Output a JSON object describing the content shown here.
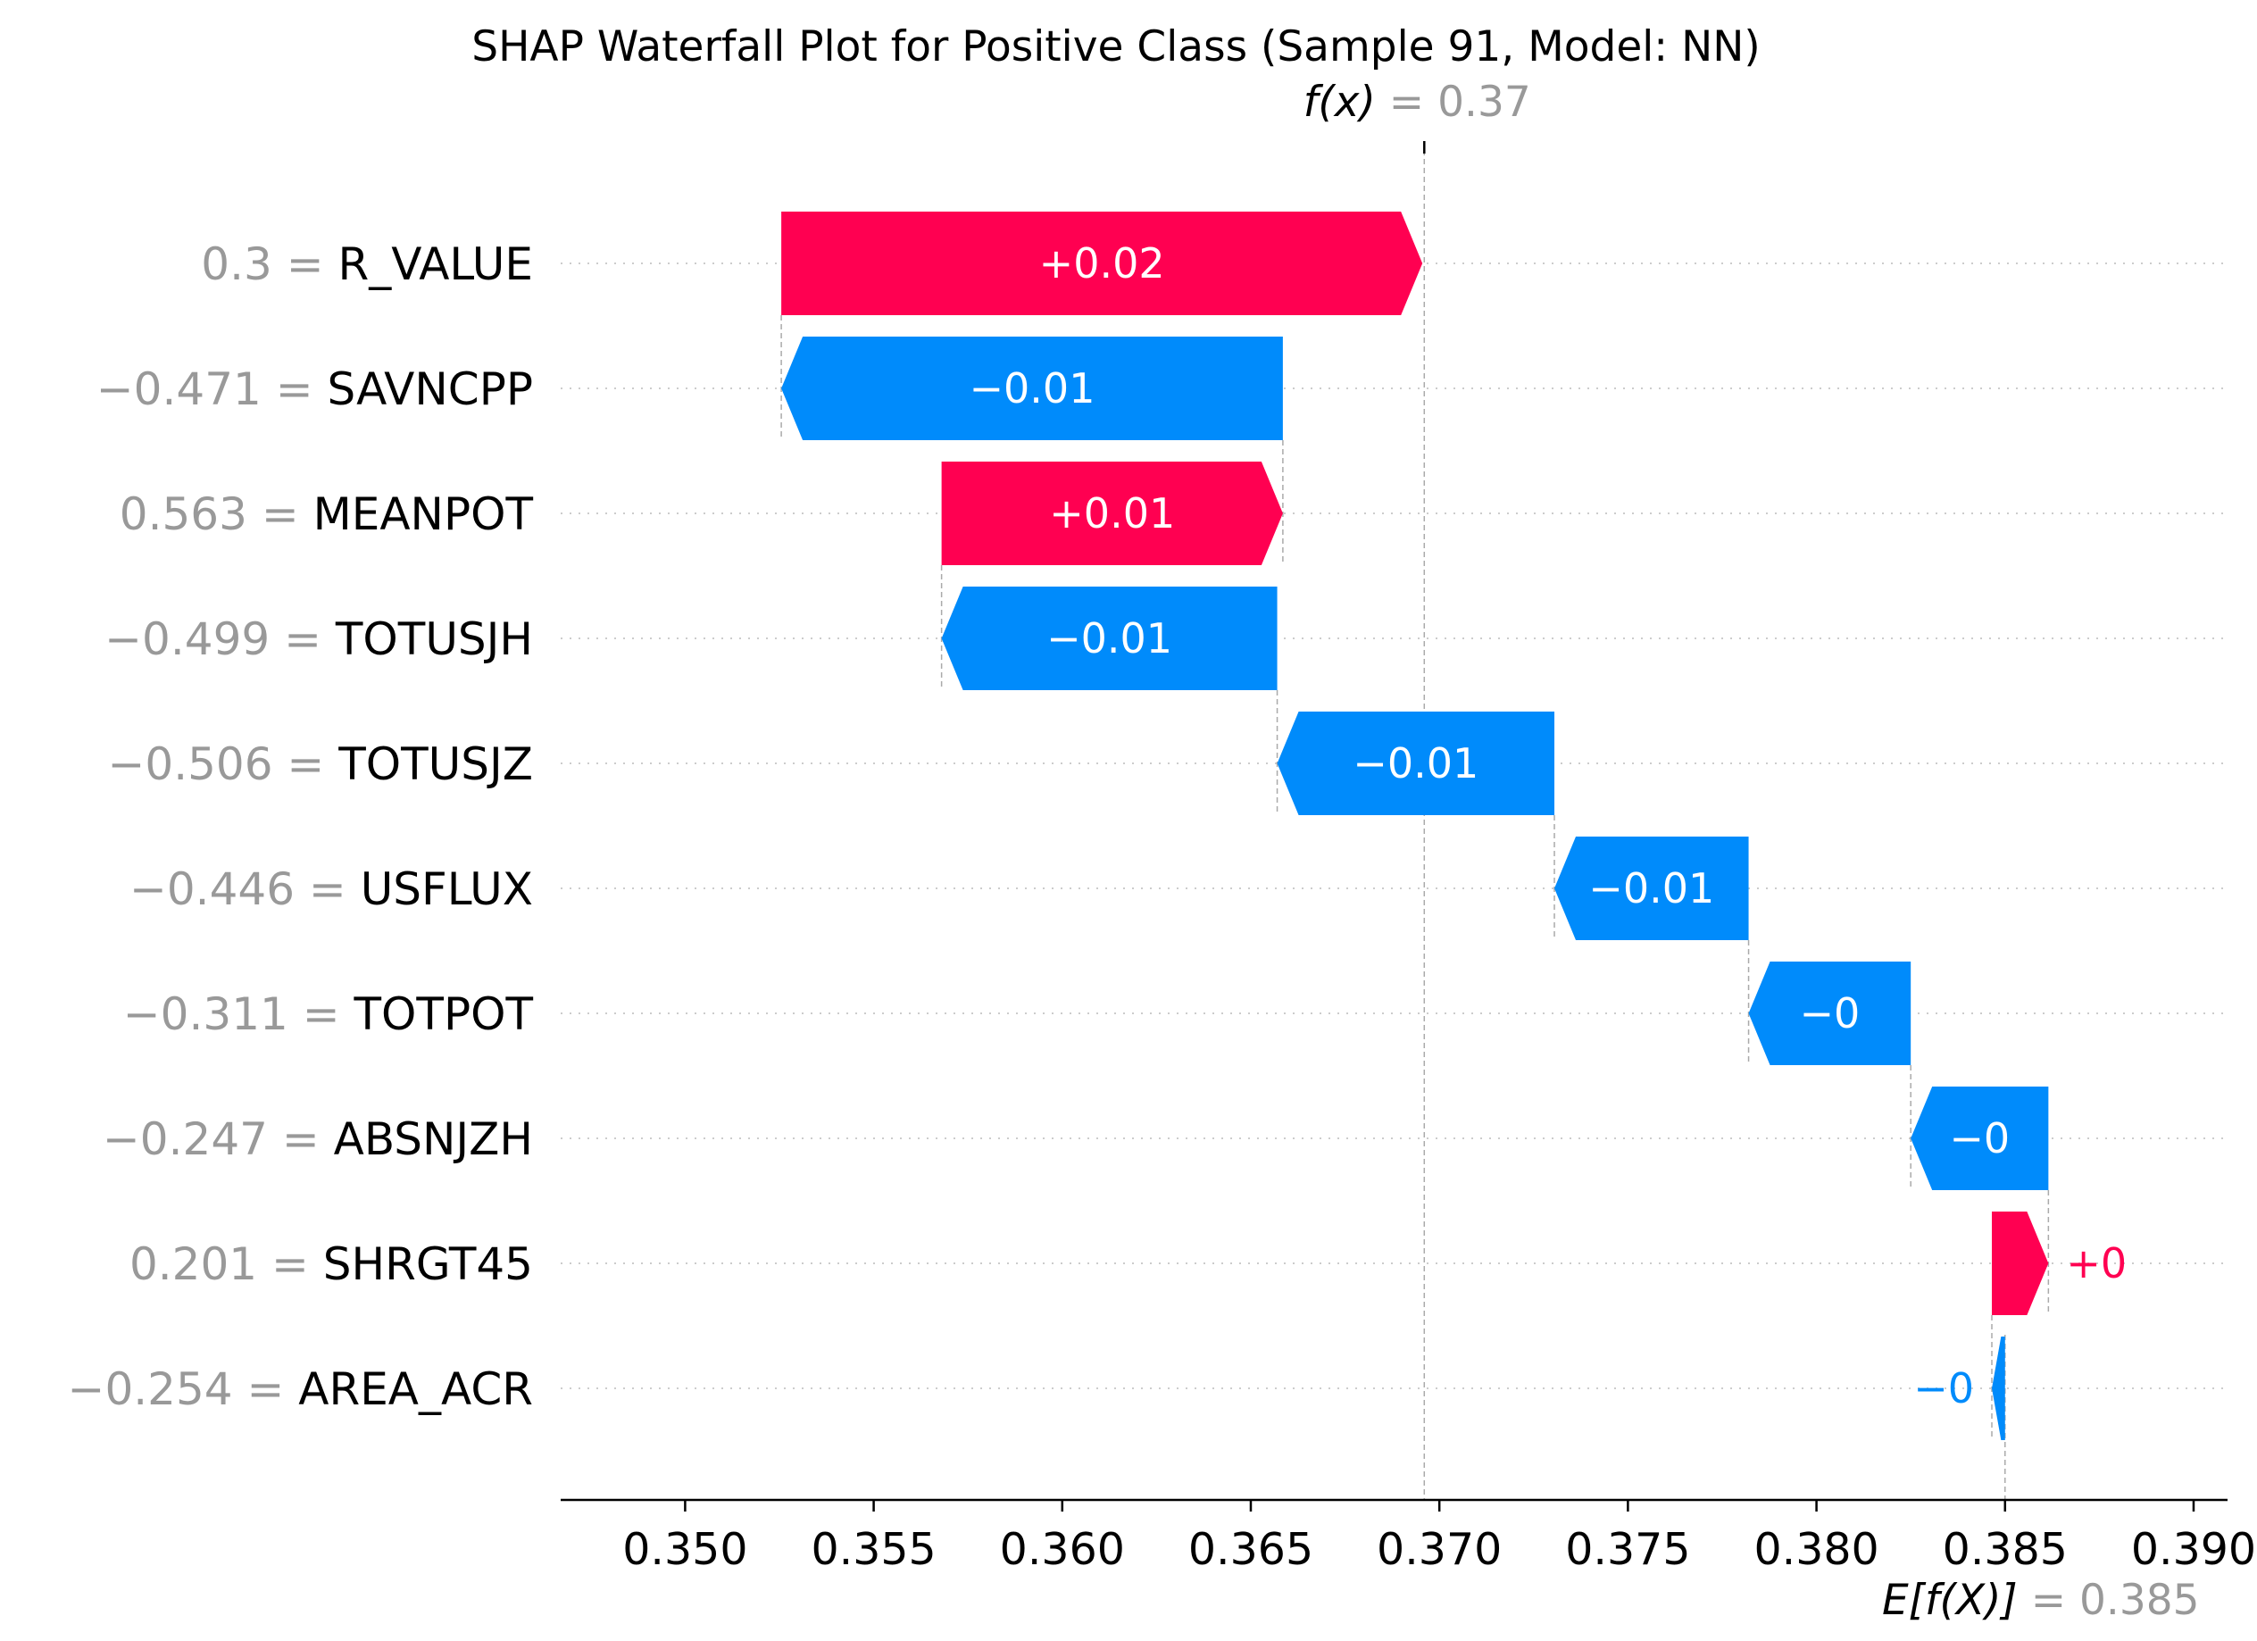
{
  "chart_data": {
    "type": "waterfall",
    "title": "SHAP Waterfall Plot for Positive Class (Sample 91, Model: NN)",
    "fx": {
      "label": "f(x)",
      "value_text": "= 0.37",
      "value": 0.3696
    },
    "efx": {
      "label": "E[f(X)]",
      "value_text": "= 0.385",
      "value": 0.385
    },
    "xlim": [
      0.3467,
      0.3909
    ],
    "xticks": [
      0.35,
      0.355,
      0.36,
      0.365,
      0.37,
      0.375,
      0.38,
      0.385,
      0.39
    ],
    "xtick_labels": [
      "0.350",
      "0.355",
      "0.360",
      "0.365",
      "0.370",
      "0.375",
      "0.380",
      "0.385",
      "0.390"
    ],
    "positive_color": "#ff0051",
    "negative_color": "#008bfb",
    "features": [
      {
        "name": "R_VALUE",
        "feature_value": "0.3",
        "start": 0.35255,
        "end": 0.36955,
        "label": "+0.02"
      },
      {
        "name": "SAVNCPP",
        "feature_value": "−0.471",
        "start": 0.36585,
        "end": 0.35255,
        "label": "−0.01"
      },
      {
        "name": "MEANPOT",
        "feature_value": "0.563",
        "start": 0.3568,
        "end": 0.36585,
        "label": "+0.01"
      },
      {
        "name": "TOTUSJH",
        "feature_value": "−0.499",
        "start": 0.3657,
        "end": 0.3568,
        "label": "−0.01"
      },
      {
        "name": "TOTUSJZ",
        "feature_value": "−0.506",
        "start": 0.37305,
        "end": 0.3657,
        "label": "−0.01"
      },
      {
        "name": "USFLUX",
        "feature_value": "−0.446",
        "start": 0.3782,
        "end": 0.37305,
        "label": "−0.01"
      },
      {
        "name": "TOTPOT",
        "feature_value": "−0.311",
        "start": 0.3825,
        "end": 0.3782,
        "label": "−0"
      },
      {
        "name": "ABSNJZH",
        "feature_value": "−0.247",
        "start": 0.38615,
        "end": 0.3825,
        "label": "−0"
      },
      {
        "name": "SHRGT45",
        "feature_value": "0.201",
        "start": 0.38465,
        "end": 0.38615,
        "label": "+0"
      },
      {
        "name": "AREA_ACR",
        "feature_value": "−0.254",
        "start": 0.385,
        "end": 0.38465,
        "label": "−0"
      }
    ]
  }
}
